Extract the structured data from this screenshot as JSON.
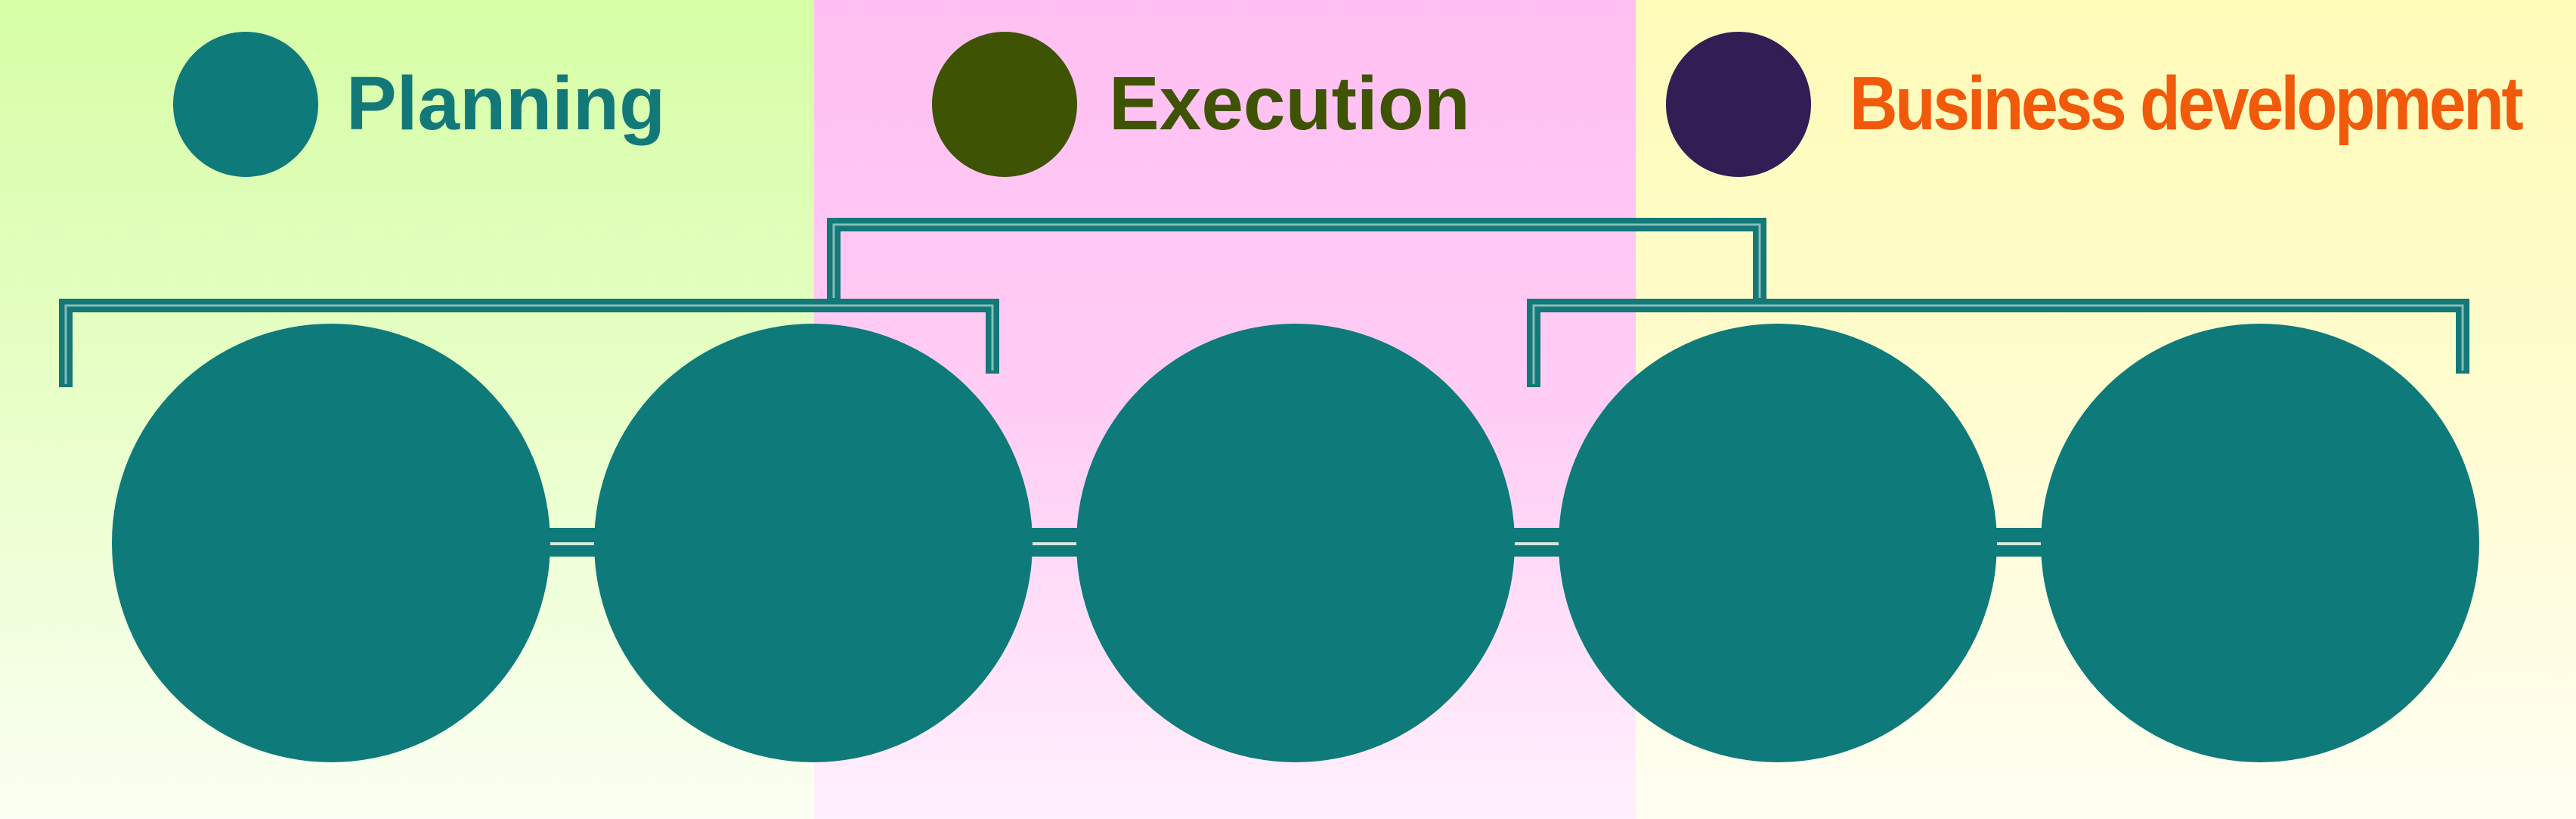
{
  "colors": {
    "node": "#0e7a7a",
    "bracket": "#137878"
  },
  "legend": [
    {
      "label": "Planning",
      "dot_color": "#0e7a7a",
      "text_color": "#137878"
    },
    {
      "label": "Execution",
      "dot_color": "#3e5404",
      "text_color": "#3e5404"
    },
    {
      "label": "Business development",
      "dot_color": "#321d55",
      "text_color": "#f1590b"
    }
  ],
  "phases": [
    "Planning",
    "Execution",
    "Business development"
  ],
  "nodes": [
    {
      "id": 1
    },
    {
      "id": 2
    },
    {
      "id": 3
    },
    {
      "id": 4
    },
    {
      "id": 5
    }
  ],
  "brackets": [
    {
      "spans_nodes": [
        1,
        2
      ]
    },
    {
      "spans_nodes": [
        4,
        5
      ]
    },
    {
      "spans_brackets": [
        1,
        2
      ]
    }
  ]
}
